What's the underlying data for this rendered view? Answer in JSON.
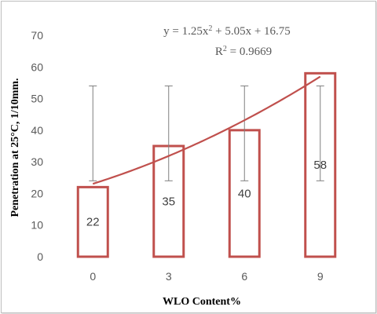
{
  "chart_data": {
    "type": "bar",
    "categories": [
      "0",
      "3",
      "6",
      "9"
    ],
    "values": [
      22,
      35,
      40,
      58
    ],
    "data_labels": [
      "22",
      "35",
      "40",
      "58"
    ],
    "error_bar": {
      "low": 24,
      "high": 54
    },
    "trendline": {
      "type": "polynomial",
      "coefficients": [
        1.25,
        5.05,
        16.75
      ],
      "equation_prefix": "y = 1.25x",
      "equation_sup": "2",
      "equation_suffix": " + 5.05x + 16.75",
      "r2_prefix": "R",
      "r2_sup": "2",
      "r2_suffix": " = 0.9669"
    },
    "xlabel": "WLO  Content%",
    "ylabel": "Penetration at 25°C, 1/10mm.",
    "ylim": [
      0,
      70
    ],
    "yticks": [
      0,
      10,
      20,
      30,
      40,
      50,
      60,
      70
    ],
    "grid": false,
    "legend": "none",
    "colors": {
      "bar_border": "#c0504d",
      "bar_fill": "#ffffff",
      "trendline": "#c0504d",
      "error_bar": "#7f7f7f"
    }
  }
}
